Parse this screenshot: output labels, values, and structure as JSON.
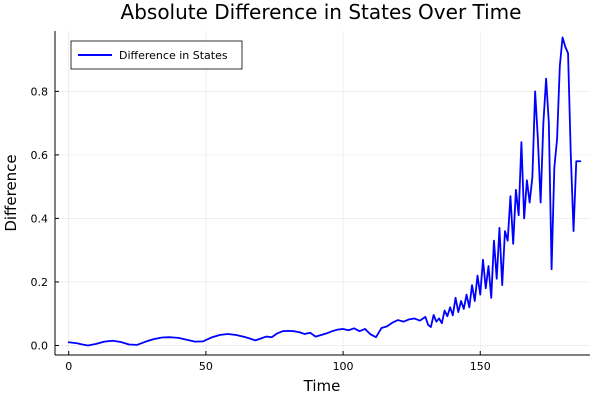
{
  "chart_data": {
    "type": "line",
    "title": "Absolute Difference in States Over Time",
    "xlabel": "Time",
    "ylabel": "Difference",
    "xlim": [
      -5,
      190
    ],
    "ylim": [
      -0.03,
      0.99
    ],
    "xticks": [
      0,
      50,
      100,
      150
    ],
    "yticks": [
      0.0,
      0.2,
      0.4,
      0.6,
      0.8
    ],
    "xtick_labels": [
      "0",
      "50",
      "100",
      "150"
    ],
    "ytick_labels": [
      "0.0",
      "0.2",
      "0.4",
      "0.6",
      "0.8"
    ],
    "grid": true,
    "legend_position": "top-left",
    "series": [
      {
        "name": "Difference in States",
        "color": "#0000ff",
        "x": [
          0,
          3,
          5,
          7,
          10,
          13,
          16,
          19,
          22,
          25,
          28,
          31,
          34,
          37,
          40,
          43,
          46,
          49,
          52,
          55,
          58,
          61,
          64,
          66,
          68,
          70,
          72,
          74,
          76,
          78,
          80,
          82,
          84,
          86,
          88,
          90,
          92,
          94,
          96,
          98,
          100,
          102,
          104,
          106,
          108,
          110,
          112,
          114,
          116,
          118,
          120,
          122,
          124,
          126,
          128,
          130,
          131,
          132,
          133,
          134,
          135,
          136,
          137,
          138,
          139,
          140,
          141,
          142,
          143,
          144,
          145,
          146,
          147,
          148,
          149,
          150,
          151,
          152,
          153,
          154,
          155,
          156,
          157,
          158,
          159,
          160,
          161,
          162,
          163,
          164,
          165,
          166,
          167,
          168,
          169,
          170,
          171,
          172,
          173,
          174,
          175,
          176,
          177,
          178,
          179,
          180,
          181,
          182,
          183,
          184,
          185,
          186,
          186.5
        ],
        "y": [
          0.01,
          0.007,
          0.003,
          0.0,
          0.005,
          0.012,
          0.015,
          0.011,
          0.003,
          0.002,
          0.012,
          0.02,
          0.025,
          0.026,
          0.024,
          0.018,
          0.012,
          0.013,
          0.025,
          0.033,
          0.036,
          0.033,
          0.027,
          0.022,
          0.016,
          0.022,
          0.028,
          0.026,
          0.038,
          0.045,
          0.046,
          0.045,
          0.042,
          0.036,
          0.04,
          0.028,
          0.033,
          0.038,
          0.045,
          0.05,
          0.052,
          0.048,
          0.054,
          0.045,
          0.052,
          0.035,
          0.026,
          0.055,
          0.06,
          0.072,
          0.08,
          0.075,
          0.082,
          0.085,
          0.078,
          0.09,
          0.065,
          0.058,
          0.096,
          0.075,
          0.085,
          0.07,
          0.11,
          0.092,
          0.12,
          0.095,
          0.15,
          0.105,
          0.14,
          0.115,
          0.16,
          0.12,
          0.19,
          0.14,
          0.22,
          0.16,
          0.27,
          0.18,
          0.25,
          0.15,
          0.33,
          0.21,
          0.37,
          0.19,
          0.36,
          0.33,
          0.47,
          0.32,
          0.49,
          0.41,
          0.64,
          0.4,
          0.52,
          0.45,
          0.53,
          0.8,
          0.65,
          0.45,
          0.7,
          0.84,
          0.7,
          0.24,
          0.56,
          0.65,
          0.88,
          0.97,
          0.94,
          0.92,
          0.6,
          0.36,
          0.58,
          0.58,
          0.58
        ]
      }
    ]
  }
}
